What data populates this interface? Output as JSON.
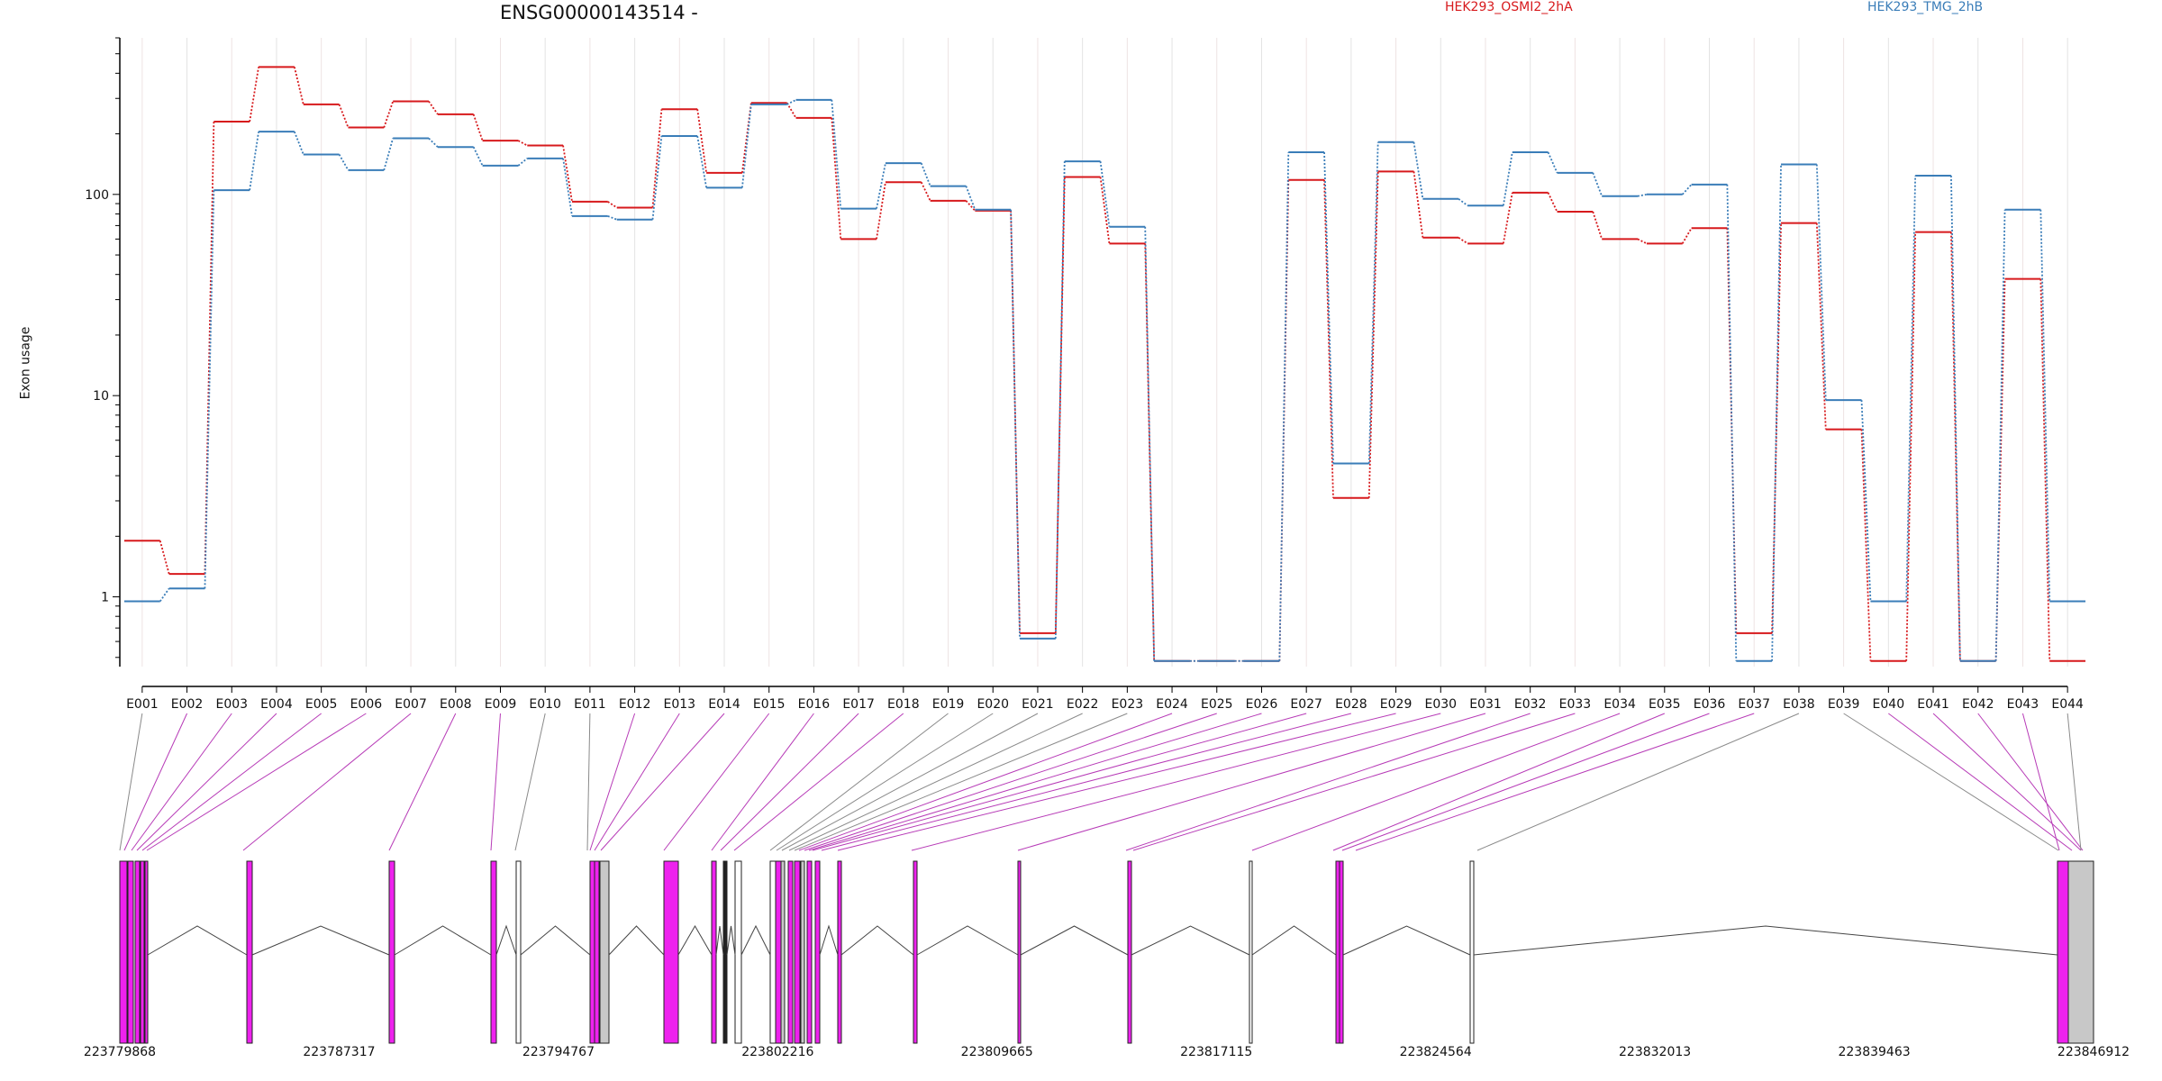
{
  "chart_data": {
    "type": "line",
    "title": "ENSG00000143514 -",
    "ylabel": "Exon usage",
    "yscale": "log",
    "ylim": [
      0.45,
      600
    ],
    "yticks": [
      "1",
      "10",
      "100"
    ],
    "grid": "vertical",
    "legend": "top-right",
    "categories": [
      "E001",
      "E002",
      "E003",
      "E004",
      "E005",
      "E006",
      "E007",
      "E008",
      "E009",
      "E010",
      "E011",
      "E012",
      "E013",
      "E014",
      "E015",
      "E016",
      "E017",
      "E018",
      "E019",
      "E020",
      "E021",
      "E022",
      "E023",
      "E024",
      "E025",
      "E026",
      "E027",
      "E028",
      "E029",
      "E030",
      "E031",
      "E032",
      "E033",
      "E034",
      "E035",
      "E036",
      "E037",
      "E038",
      "E039",
      "E040",
      "E041",
      "E042",
      "E043",
      "E044"
    ],
    "series": [
      {
        "name": "HEK293_OSMI2_2hA",
        "color": "#d7191c",
        "values": [
          1.9,
          1.3,
          230,
          430,
          280,
          215,
          290,
          250,
          185,
          175,
          92,
          86,
          265,
          128,
          285,
          240,
          60,
          115,
          93,
          83,
          0.66,
          122,
          57,
          0.48,
          0.48,
          0.48,
          118,
          3.1,
          130,
          61,
          57,
          102,
          82,
          60,
          57,
          68,
          0.66,
          72,
          6.8,
          0.48,
          65,
          0.48,
          38,
          0.48
        ]
      },
      {
        "name": "HEK293_TMG_2hB",
        "color": "#3a7db8",
        "values": [
          0.95,
          1.1,
          105,
          205,
          158,
          132,
          190,
          172,
          139,
          151,
          78,
          75,
          195,
          108,
          280,
          295,
          85,
          143,
          110,
          84,
          0.62,
          146,
          69,
          0.48,
          0.48,
          0.48,
          162,
          4.6,
          182,
          95,
          88,
          162,
          128,
          98,
          100,
          112,
          0.48,
          141,
          9.5,
          0.95,
          124,
          0.48,
          84,
          0.95
        ]
      }
    ],
    "coordinates": [
      "223779868",
      "223787317",
      "223794767",
      "223802216",
      "223809665",
      "223817115",
      "223824564",
      "223832013",
      "223839463",
      "223846912"
    ]
  }
}
